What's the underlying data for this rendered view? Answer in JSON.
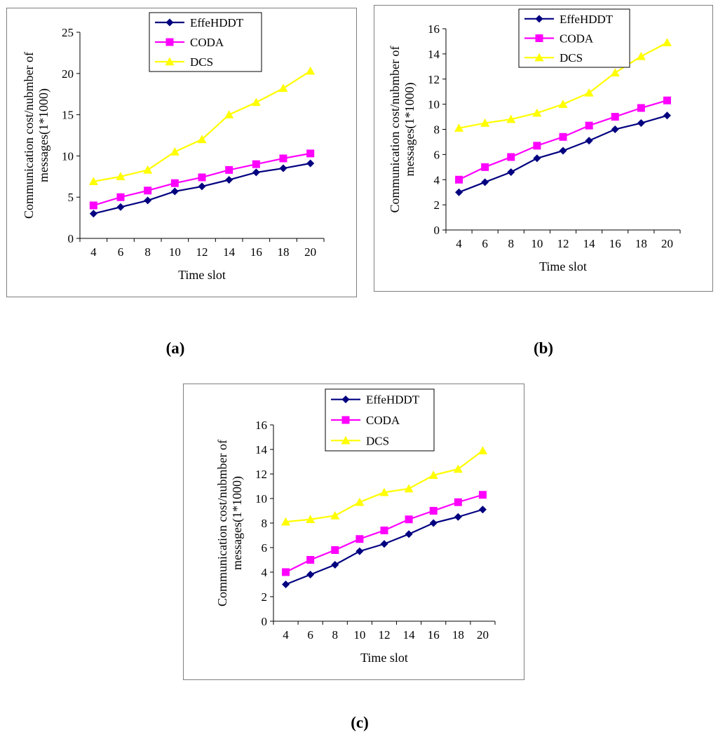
{
  "captions": [
    "(a)",
    "(b)",
    "(c)"
  ],
  "colors": {
    "effe": "#000080",
    "coda": "#ff00ff",
    "dcs": "#ffff00",
    "axis": "#000000",
    "frame": "#7f7f7f"
  },
  "chart_data": [
    {
      "type": "line",
      "x": [
        4,
        6,
        8,
        10,
        12,
        14,
        16,
        18,
        20
      ],
      "xticks": [
        "4",
        "6",
        "8",
        "10",
        "12",
        "14",
        "16",
        "18",
        "20"
      ],
      "yticks": [
        "0",
        "5",
        "10",
        "15",
        "20",
        "25"
      ],
      "ylim": [
        0,
        25
      ],
      "xlabel": "Time slot",
      "ylabel_lines": [
        "Communication cost/nubmber of",
        "messages(1*1000)"
      ],
      "legend_position": "top-right",
      "series": [
        {
          "name": "EffeHDDT",
          "marker": "diamond",
          "color": "#000080",
          "values": [
            3.0,
            3.8,
            4.6,
            5.7,
            6.3,
            7.1,
            8.0,
            8.5,
            9.1
          ]
        },
        {
          "name": "CODA",
          "marker": "square",
          "color": "#ff00ff",
          "values": [
            4.0,
            5.0,
            5.8,
            6.7,
            7.4,
            8.3,
            9.0,
            9.7,
            10.3
          ]
        },
        {
          "name": "DCS",
          "marker": "triangle",
          "color": "#ffff00",
          "values": [
            6.9,
            7.5,
            8.3,
            10.5,
            12.0,
            15.0,
            16.5,
            18.2,
            20.3
          ]
        }
      ]
    },
    {
      "type": "line",
      "x": [
        4,
        6,
        8,
        10,
        12,
        14,
        16,
        18,
        20
      ],
      "xticks": [
        "4",
        "6",
        "8",
        "10",
        "12",
        "14",
        "16",
        "18",
        "20"
      ],
      "yticks": [
        "0",
        "2",
        "4",
        "6",
        "8",
        "10",
        "12",
        "14",
        "16"
      ],
      "ylim": [
        0,
        16
      ],
      "xlabel": "Time slot",
      "ylabel_lines": [
        "Communication cost/nubmber of",
        "messages(1*1000)"
      ],
      "legend_position": "top-left",
      "series": [
        {
          "name": "EffeHDDT",
          "marker": "diamond",
          "color": "#000080",
          "values": [
            3.0,
            3.8,
            4.6,
            5.7,
            6.3,
            7.1,
            8.0,
            8.5,
            9.1
          ]
        },
        {
          "name": "CODA",
          "marker": "square",
          "color": "#ff00ff",
          "values": [
            4.0,
            5.0,
            5.8,
            6.7,
            7.4,
            8.3,
            9.0,
            9.7,
            10.3
          ]
        },
        {
          "name": "DCS",
          "marker": "triangle",
          "color": "#ffff00",
          "values": [
            8.1,
            8.5,
            8.8,
            9.3,
            10.0,
            10.9,
            12.5,
            13.8,
            14.9
          ]
        }
      ]
    },
    {
      "type": "line",
      "x": [
        4,
        6,
        8,
        10,
        12,
        14,
        16,
        18,
        20
      ],
      "xticks": [
        "4",
        "6",
        "8",
        "10",
        "12",
        "14",
        "16",
        "18",
        "20"
      ],
      "yticks": [
        "0",
        "2",
        "4",
        "6",
        "8",
        "10",
        "12",
        "14",
        "16"
      ],
      "ylim": [
        0,
        16
      ],
      "xlabel": "Time slot",
      "ylabel_lines": [
        "Communication cost/nubmber of",
        "messages(1*1000)"
      ],
      "legend_position": "top-right",
      "series": [
        {
          "name": "EffeHDDT",
          "marker": "diamond",
          "color": "#000080",
          "values": [
            3.0,
            3.8,
            4.6,
            5.7,
            6.3,
            7.1,
            8.0,
            8.5,
            9.1
          ]
        },
        {
          "name": "CODA",
          "marker": "square",
          "color": "#ff00ff",
          "values": [
            4.0,
            5.0,
            5.8,
            6.7,
            7.4,
            8.3,
            9.0,
            9.7,
            10.3
          ]
        },
        {
          "name": "DCS",
          "marker": "triangle",
          "color": "#ffff00",
          "values": [
            8.1,
            8.3,
            8.6,
            9.7,
            10.5,
            10.8,
            11.9,
            12.4,
            13.9
          ]
        }
      ]
    }
  ]
}
